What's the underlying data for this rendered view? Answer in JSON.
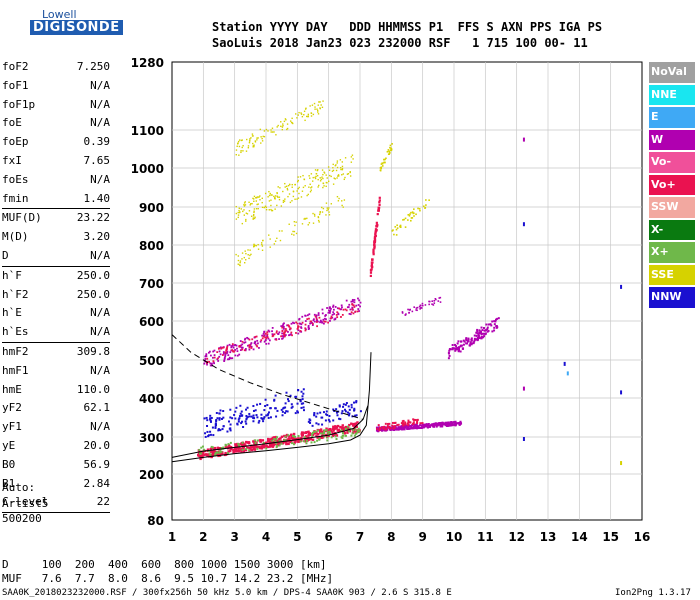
{
  "logo": {
    "brand": "Lowell",
    "product": "DIGISONDE"
  },
  "header": {
    "line1": "Station YYYY DAY   DDD HHMMSS P1  FFS S AXN PPS IGA PS",
    "line2": "SaoLuis 2018 Jan23 023 232000 RSF   1 715 100 00- 11"
  },
  "params": [
    {
      "k": "foF2",
      "v": "7.250"
    },
    {
      "k": "foF1",
      "v": "N/A"
    },
    {
      "k": "foF1p",
      "v": "N/A"
    },
    {
      "k": "foE",
      "v": "N/A"
    },
    {
      "k": "foEp",
      "v": "0.39"
    },
    {
      "k": "fxI",
      "v": "7.65"
    },
    {
      "k": "foEs",
      "v": "N/A"
    },
    {
      "k": "fmin",
      "v": "1.40"
    },
    {
      "k": "MUF(D)",
      "v": "23.22"
    },
    {
      "k": "M(D)",
      "v": "3.20"
    },
    {
      "k": "D",
      "v": "N/A"
    },
    {
      "k": "h`F",
      "v": "250.0"
    },
    {
      "k": "h`F2",
      "v": "250.0"
    },
    {
      "k": "h`E",
      "v": "N/A"
    },
    {
      "k": "h`Es",
      "v": "N/A"
    },
    {
      "k": "hmF2",
      "v": "309.8"
    },
    {
      "k": "hmF1",
      "v": "N/A"
    },
    {
      "k": "hmE",
      "v": "110.0"
    },
    {
      "k": "yF2",
      "v": "62.1"
    },
    {
      "k": "yF1",
      "v": "N/A"
    },
    {
      "k": "yE",
      "v": "20.0"
    },
    {
      "k": "B0",
      "v": "56.9"
    },
    {
      "k": "B1",
      "v": "2.84"
    },
    {
      "k": "C-level",
      "v": "22"
    }
  ],
  "auto": {
    "line1": "Auto:",
    "line2": "Artist5",
    "line3": "500200"
  },
  "legend": [
    {
      "label": "NoVal",
      "color": "#a0a0a0"
    },
    {
      "label": "NNE",
      "color": "#19e6f0"
    },
    {
      "label": "E",
      "color": "#3fa9f5"
    },
    {
      "label": "W",
      "color": "#b000b0"
    },
    {
      "label": "Vo-",
      "color": "#f0509a"
    },
    {
      "label": "Vo+",
      "color": "#ea1250"
    },
    {
      "label": "SSW",
      "color": "#f2a8a0"
    },
    {
      "label": "X-",
      "color": "#0a7a10"
    },
    {
      "label": "X+",
      "color": "#6fb84a"
    },
    {
      "label": "SSE",
      "color": "#d6d200"
    },
    {
      "label": "NNW",
      "color": "#1a10d0"
    }
  ],
  "axes": {
    "x_ticks": [
      "1",
      "2",
      "3",
      "4",
      "5",
      "6",
      "7",
      "8",
      "9",
      "10",
      "11",
      "12",
      "13",
      "14",
      "15",
      "16"
    ],
    "y_ticks": [
      "80",
      "200",
      "300",
      "400",
      "500",
      "600",
      "700",
      "800",
      "900",
      "1000",
      "1100",
      "1280"
    ]
  },
  "bottom": {
    "d_line": "D     100  200  400  600  800 1000 1500 3000 [km]",
    "muf_line": "MUF   7.6  7.7  8.0  8.6  9.5 10.7 14.2 23.2 [MHz]"
  },
  "footer": {
    "left": "SAA0K_2018023232000.RSF / 300fx256h 50 kHz 5.0 km / DPS-4 SAA0K 903 / 2.6 S 315.8 E",
    "right": "Ion2Png 1.3.17"
  },
  "chart_data": {
    "type": "scatter",
    "xlim": [
      1,
      16
    ],
    "ylim": [
      80,
      1280
    ],
    "series": [
      {
        "name": "Vo+",
        "points": [
          [
            1.8,
            262
          ],
          [
            2.5,
            275
          ],
          [
            3.2,
            282
          ],
          [
            4,
            290
          ],
          [
            4.8,
            300
          ],
          [
            5.5,
            310
          ],
          [
            6.2,
            322
          ],
          [
            6.8,
            340
          ],
          [
            7.1,
            360
          ]
        ]
      },
      {
        "name": "W",
        "points": [
          [
            7.5,
            330
          ],
          [
            8,
            332
          ],
          [
            8.5,
            330
          ],
          [
            9,
            328
          ],
          [
            9.5,
            330
          ]
        ]
      },
      {
        "name": "SSE",
        "points": [
          [
            3,
            1060
          ],
          [
            3.5,
            1090
          ],
          [
            4,
            1110
          ],
          [
            4.5,
            1130
          ],
          [
            3,
            900
          ],
          [
            3.5,
            930
          ],
          [
            4,
            960
          ]
        ]
      },
      {
        "name": "NNW",
        "points": [
          [
            2.5,
            350
          ],
          [
            3.5,
            380
          ],
          [
            4.5,
            400
          ],
          [
            5.2,
            410
          ]
        ]
      }
    ]
  }
}
